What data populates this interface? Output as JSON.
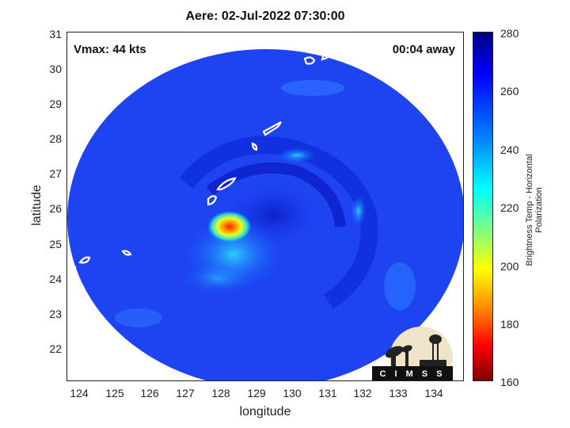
{
  "title": "Aere: 02-Jul-2022 07:30:00",
  "annotations": {
    "vmax": "Vmax: 44 kts",
    "away": "00:04 away"
  },
  "axes": {
    "xlabel": "longitude",
    "ylabel": "latitude",
    "xlim": [
      123.6,
      134.8
    ],
    "ylim": [
      21.1,
      31.1
    ],
    "xticks": [
      "124",
      "125",
      "126",
      "127",
      "128",
      "129",
      "130",
      "131",
      "132",
      "133",
      "134"
    ],
    "yticks": [
      "31",
      "30",
      "29",
      "28",
      "27",
      "26",
      "25",
      "24",
      "23",
      "22"
    ]
  },
  "colorbar": {
    "label": "Brightness Temp - Horizontal Polarization",
    "range": [
      160,
      280
    ],
    "ticks": [
      "280",
      "260",
      "240",
      "220",
      "200",
      "180",
      "160"
    ],
    "colormap": "jet"
  },
  "logo": {
    "text": "CIMSS"
  },
  "map": {
    "background_color": "#1a3cf0",
    "storm_center_lon": 128.2,
    "storm_center_lat": 25.5,
    "min_brightness_temp_est": 175
  }
}
